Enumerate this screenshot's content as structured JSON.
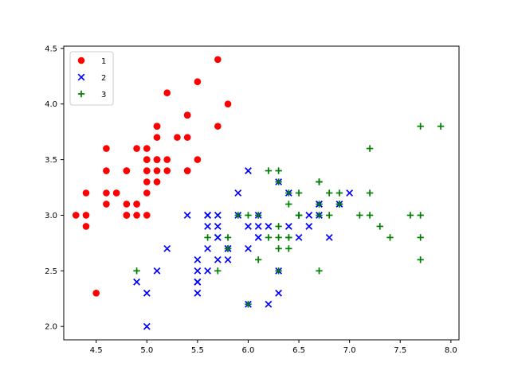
{
  "chart_data": {
    "type": "scatter",
    "title": "",
    "xlabel": "",
    "ylabel": "",
    "xlim": [
      4.18,
      8.08
    ],
    "ylim": [
      1.88,
      4.52
    ],
    "xticks": [
      4.5,
      5.0,
      5.5,
      6.0,
      6.5,
      7.0,
      7.5,
      8.0
    ],
    "yticks": [
      2.0,
      2.5,
      3.0,
      3.5,
      4.0,
      4.5
    ],
    "grid": false,
    "legend_position": "top-left",
    "series": [
      {
        "name": "1",
        "marker": "circle",
        "color": "#ff0000",
        "points": [
          [
            5.1,
            3.5
          ],
          [
            4.9,
            3.0
          ],
          [
            4.7,
            3.2
          ],
          [
            4.6,
            3.1
          ],
          [
            5.0,
            3.6
          ],
          [
            5.4,
            3.9
          ],
          [
            4.6,
            3.4
          ],
          [
            5.0,
            3.4
          ],
          [
            4.4,
            2.9
          ],
          [
            4.9,
            3.1
          ],
          [
            5.4,
            3.7
          ],
          [
            4.8,
            3.4
          ],
          [
            4.8,
            3.0
          ],
          [
            4.3,
            3.0
          ],
          [
            5.8,
            4.0
          ],
          [
            5.7,
            4.4
          ],
          [
            5.4,
            3.9
          ],
          [
            5.1,
            3.5
          ],
          [
            5.7,
            3.8
          ],
          [
            5.1,
            3.8
          ],
          [
            5.4,
            3.4
          ],
          [
            5.1,
            3.7
          ],
          [
            4.6,
            3.6
          ],
          [
            5.1,
            3.3
          ],
          [
            4.8,
            3.4
          ],
          [
            5.0,
            3.0
          ],
          [
            5.0,
            3.4
          ],
          [
            5.2,
            3.5
          ],
          [
            5.2,
            3.4
          ],
          [
            4.7,
            3.2
          ],
          [
            4.8,
            3.1
          ],
          [
            5.4,
            3.4
          ],
          [
            5.2,
            4.1
          ],
          [
            5.5,
            4.2
          ],
          [
            4.9,
            3.1
          ],
          [
            5.0,
            3.2
          ],
          [
            5.5,
            3.5
          ],
          [
            4.9,
            3.6
          ],
          [
            4.4,
            3.0
          ],
          [
            5.1,
            3.4
          ],
          [
            5.0,
            3.5
          ],
          [
            4.5,
            2.3
          ],
          [
            4.4,
            3.2
          ],
          [
            5.0,
            3.5
          ],
          [
            5.1,
            3.8
          ],
          [
            4.8,
            3.0
          ],
          [
            5.1,
            3.8
          ],
          [
            4.6,
            3.2
          ],
          [
            5.3,
            3.7
          ],
          [
            5.0,
            3.3
          ]
        ]
      },
      {
        "name": "2",
        "marker": "x",
        "color": "#0000ff",
        "points": [
          [
            7.0,
            3.2
          ],
          [
            6.4,
            3.2
          ],
          [
            6.9,
            3.1
          ],
          [
            5.5,
            2.3
          ],
          [
            6.5,
            2.8
          ],
          [
            5.7,
            2.8
          ],
          [
            6.3,
            3.3
          ],
          [
            4.9,
            2.4
          ],
          [
            6.6,
            2.9
          ],
          [
            5.2,
            2.7
          ],
          [
            5.0,
            2.0
          ],
          [
            5.9,
            3.0
          ],
          [
            6.0,
            2.2
          ],
          [
            6.1,
            2.9
          ],
          [
            5.6,
            2.9
          ],
          [
            6.7,
            3.1
          ],
          [
            5.6,
            3.0
          ],
          [
            5.8,
            2.7
          ],
          [
            6.2,
            2.2
          ],
          [
            5.6,
            2.5
          ],
          [
            5.9,
            3.2
          ],
          [
            6.1,
            2.8
          ],
          [
            6.3,
            2.5
          ],
          [
            6.1,
            2.8
          ],
          [
            6.4,
            2.9
          ],
          [
            6.6,
            3.0
          ],
          [
            6.8,
            2.8
          ],
          [
            6.7,
            3.0
          ],
          [
            6.0,
            2.9
          ],
          [
            5.7,
            2.6
          ],
          [
            5.5,
            2.4
          ],
          [
            5.5,
            2.4
          ],
          [
            5.8,
            2.7
          ],
          [
            6.0,
            2.7
          ],
          [
            5.4,
            3.0
          ],
          [
            6.0,
            3.4
          ],
          [
            6.7,
            3.1
          ],
          [
            6.3,
            2.3
          ],
          [
            5.6,
            3.0
          ],
          [
            5.5,
            2.5
          ],
          [
            5.5,
            2.6
          ],
          [
            6.1,
            3.0
          ],
          [
            5.8,
            2.6
          ],
          [
            5.0,
            2.3
          ],
          [
            5.6,
            2.7
          ],
          [
            5.7,
            3.0
          ],
          [
            5.7,
            2.9
          ],
          [
            6.2,
            2.9
          ],
          [
            5.1,
            2.5
          ],
          [
            5.7,
            2.8
          ]
        ]
      },
      {
        "name": "3",
        "marker": "plus",
        "color": "#008000",
        "points": [
          [
            6.3,
            3.3
          ],
          [
            5.8,
            2.7
          ],
          [
            7.1,
            3.0
          ],
          [
            6.3,
            2.9
          ],
          [
            6.5,
            3.0
          ],
          [
            7.6,
            3.0
          ],
          [
            4.9,
            2.5
          ],
          [
            7.3,
            2.9
          ],
          [
            6.7,
            2.5
          ],
          [
            7.2,
            3.6
          ],
          [
            6.5,
            3.2
          ],
          [
            6.4,
            2.7
          ],
          [
            6.8,
            3.0
          ],
          [
            5.7,
            2.5
          ],
          [
            5.8,
            2.8
          ],
          [
            6.4,
            3.2
          ],
          [
            6.5,
            3.0
          ],
          [
            7.7,
            3.8
          ],
          [
            7.7,
            2.6
          ],
          [
            6.0,
            2.2
          ],
          [
            6.9,
            3.2
          ],
          [
            5.6,
            2.8
          ],
          [
            7.7,
            2.8
          ],
          [
            6.3,
            2.7
          ],
          [
            6.7,
            3.3
          ],
          [
            7.2,
            3.2
          ],
          [
            6.2,
            2.8
          ],
          [
            6.1,
            3.0
          ],
          [
            6.4,
            2.8
          ],
          [
            7.2,
            3.0
          ],
          [
            7.4,
            2.8
          ],
          [
            7.9,
            3.8
          ],
          [
            6.4,
            2.8
          ],
          [
            6.3,
            2.8
          ],
          [
            6.1,
            2.6
          ],
          [
            7.7,
            3.0
          ],
          [
            6.3,
            3.4
          ],
          [
            6.4,
            3.1
          ],
          [
            6.0,
            3.0
          ],
          [
            6.9,
            3.1
          ],
          [
            6.7,
            3.1
          ],
          [
            6.9,
            3.1
          ],
          [
            5.8,
            2.7
          ],
          [
            6.8,
            3.2
          ],
          [
            6.7,
            3.3
          ],
          [
            6.7,
            3.0
          ],
          [
            6.3,
            2.5
          ],
          [
            6.5,
            3.0
          ],
          [
            6.2,
            3.4
          ],
          [
            5.9,
            3.0
          ]
        ]
      }
    ]
  }
}
